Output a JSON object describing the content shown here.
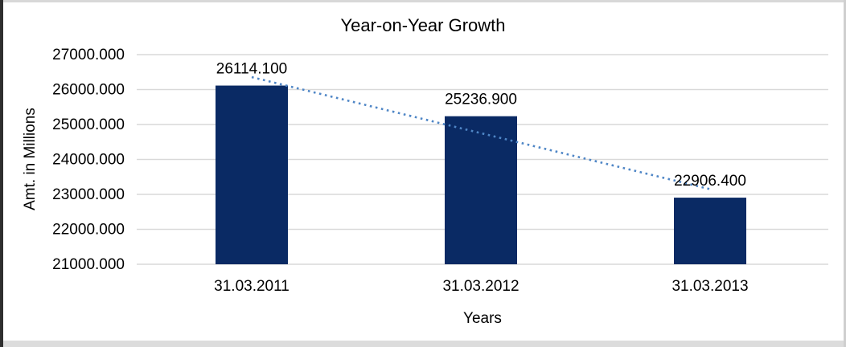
{
  "chart_data": {
    "type": "bar",
    "title": "Year-on-Year Growth",
    "xlabel": "Years",
    "ylabel": "Amt. in Millions",
    "categories": [
      "31.03.2011",
      "31.03.2012",
      "31.03.2013"
    ],
    "values": [
      26114.1,
      25236.9,
      22906.4
    ],
    "data_labels": [
      "26114.100",
      "25236.900",
      "22906.400"
    ],
    "ylim": [
      21000,
      27000
    ],
    "ytick_step": 1000,
    "ytick_labels": [
      "21000.000",
      "22000.000",
      "23000.000",
      "24000.000",
      "25000.000",
      "26000.000",
      "27000.000"
    ],
    "grid": true,
    "legend": "none",
    "bar_color": "#0A2A64",
    "gridline_color": "#D9D9D9",
    "text_color": "#000000",
    "trendline": {
      "type": "linear",
      "style": "dotted",
      "color": "#4F86C6"
    }
  }
}
